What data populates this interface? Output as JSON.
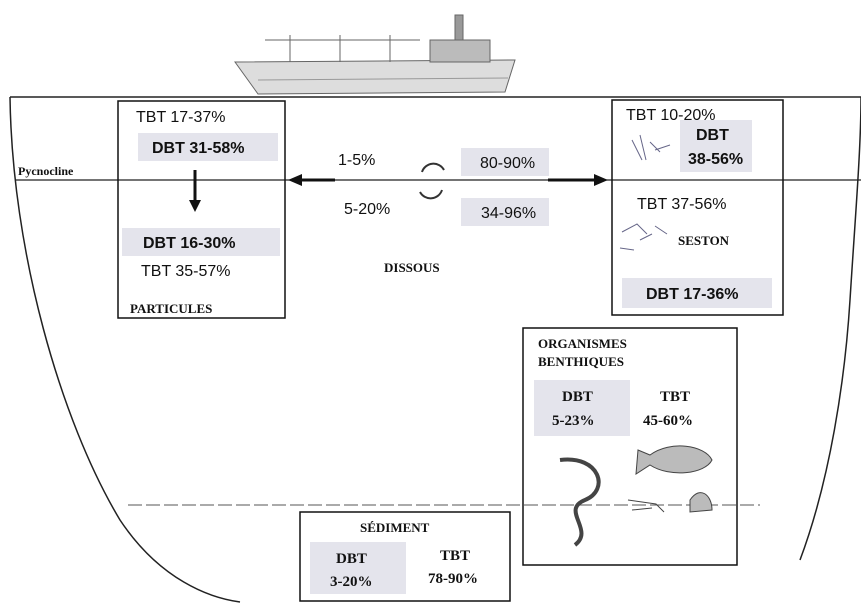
{
  "pycnocline": "Pycnocline",
  "particules": {
    "tbt_top": "TBT 17-37%",
    "dbt_top": "DBT 31-58%",
    "dbt_bottom": "DBT 16-30%",
    "tbt_bottom": "TBT 35-57%",
    "label": "PARTICULES"
  },
  "dissous": {
    "up_left": "1-5%",
    "down_left": "5-20%",
    "up_right": "80-90%",
    "down_right": "34-96%",
    "label": "DISSOUS"
  },
  "seston": {
    "tbt_top": "TBT 10-20%",
    "dbt_label": "DBT",
    "dbt_value": "38-56%",
    "tbt_mid": "TBT 37-56%",
    "label": "SESTON",
    "dbt_bottom": "DBT 17-36%"
  },
  "benthiques": {
    "title": [
      "ORGANISMES",
      "BENTHIQUES"
    ],
    "dbt_label": "DBT",
    "dbt_value": "5-23%",
    "tbt_label": "TBT",
    "tbt_value": "45-60%"
  },
  "sediment": {
    "title": "SÉDIMENT",
    "dbt_label": "DBT",
    "dbt_value": "3-20%",
    "tbt_label": "TBT",
    "tbt_value": "78-90%"
  }
}
